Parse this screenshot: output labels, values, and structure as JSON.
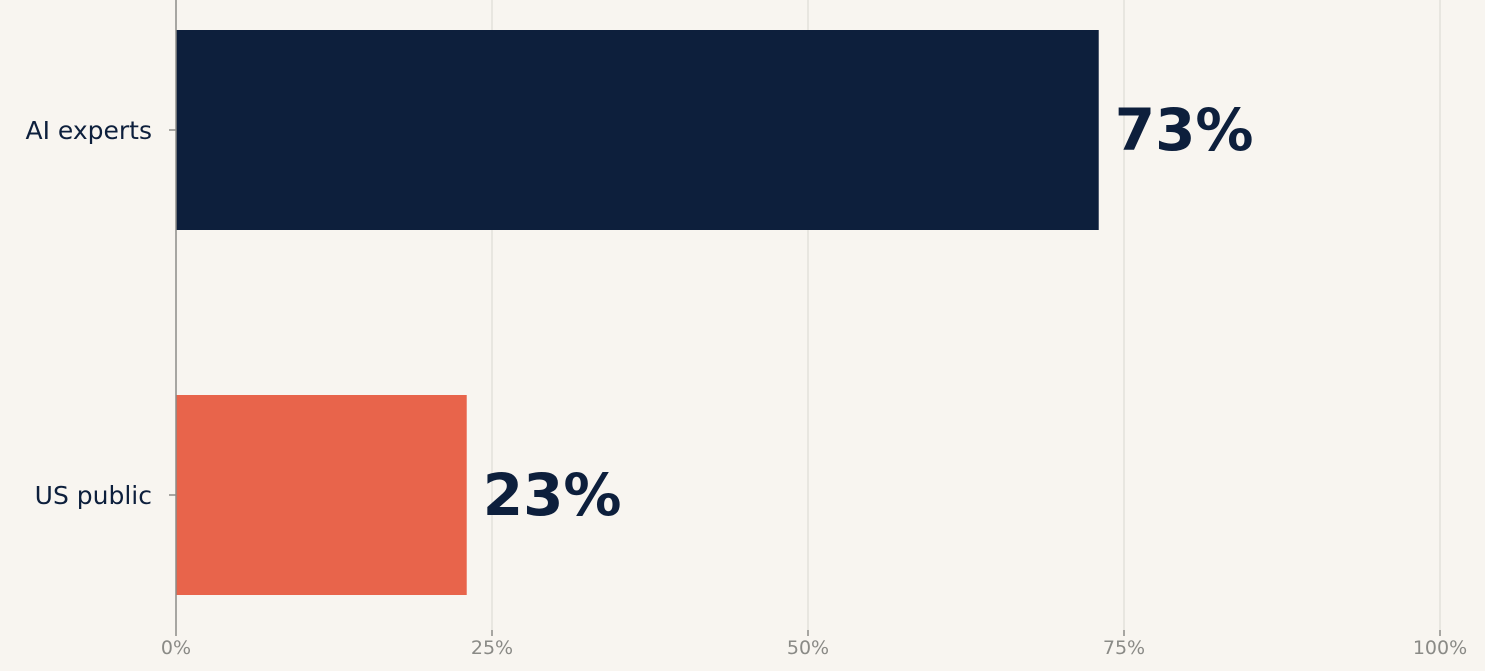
{
  "chart_data": {
    "type": "bar",
    "orientation": "horizontal",
    "categories": [
      "AI experts",
      "US public"
    ],
    "values": [
      73,
      23
    ],
    "value_labels": [
      "73%",
      "23%"
    ],
    "colors": [
      "#0d1f3c",
      "#e8644b"
    ],
    "xlim": [
      0,
      100
    ],
    "x_ticks": [
      0,
      25,
      50,
      75,
      100
    ],
    "x_tick_labels": [
      "0%",
      "25%",
      "50%",
      "75%",
      "100%"
    ],
    "grid": "vertical",
    "legend": "none",
    "title": "",
    "xlabel": "",
    "ylabel": ""
  }
}
